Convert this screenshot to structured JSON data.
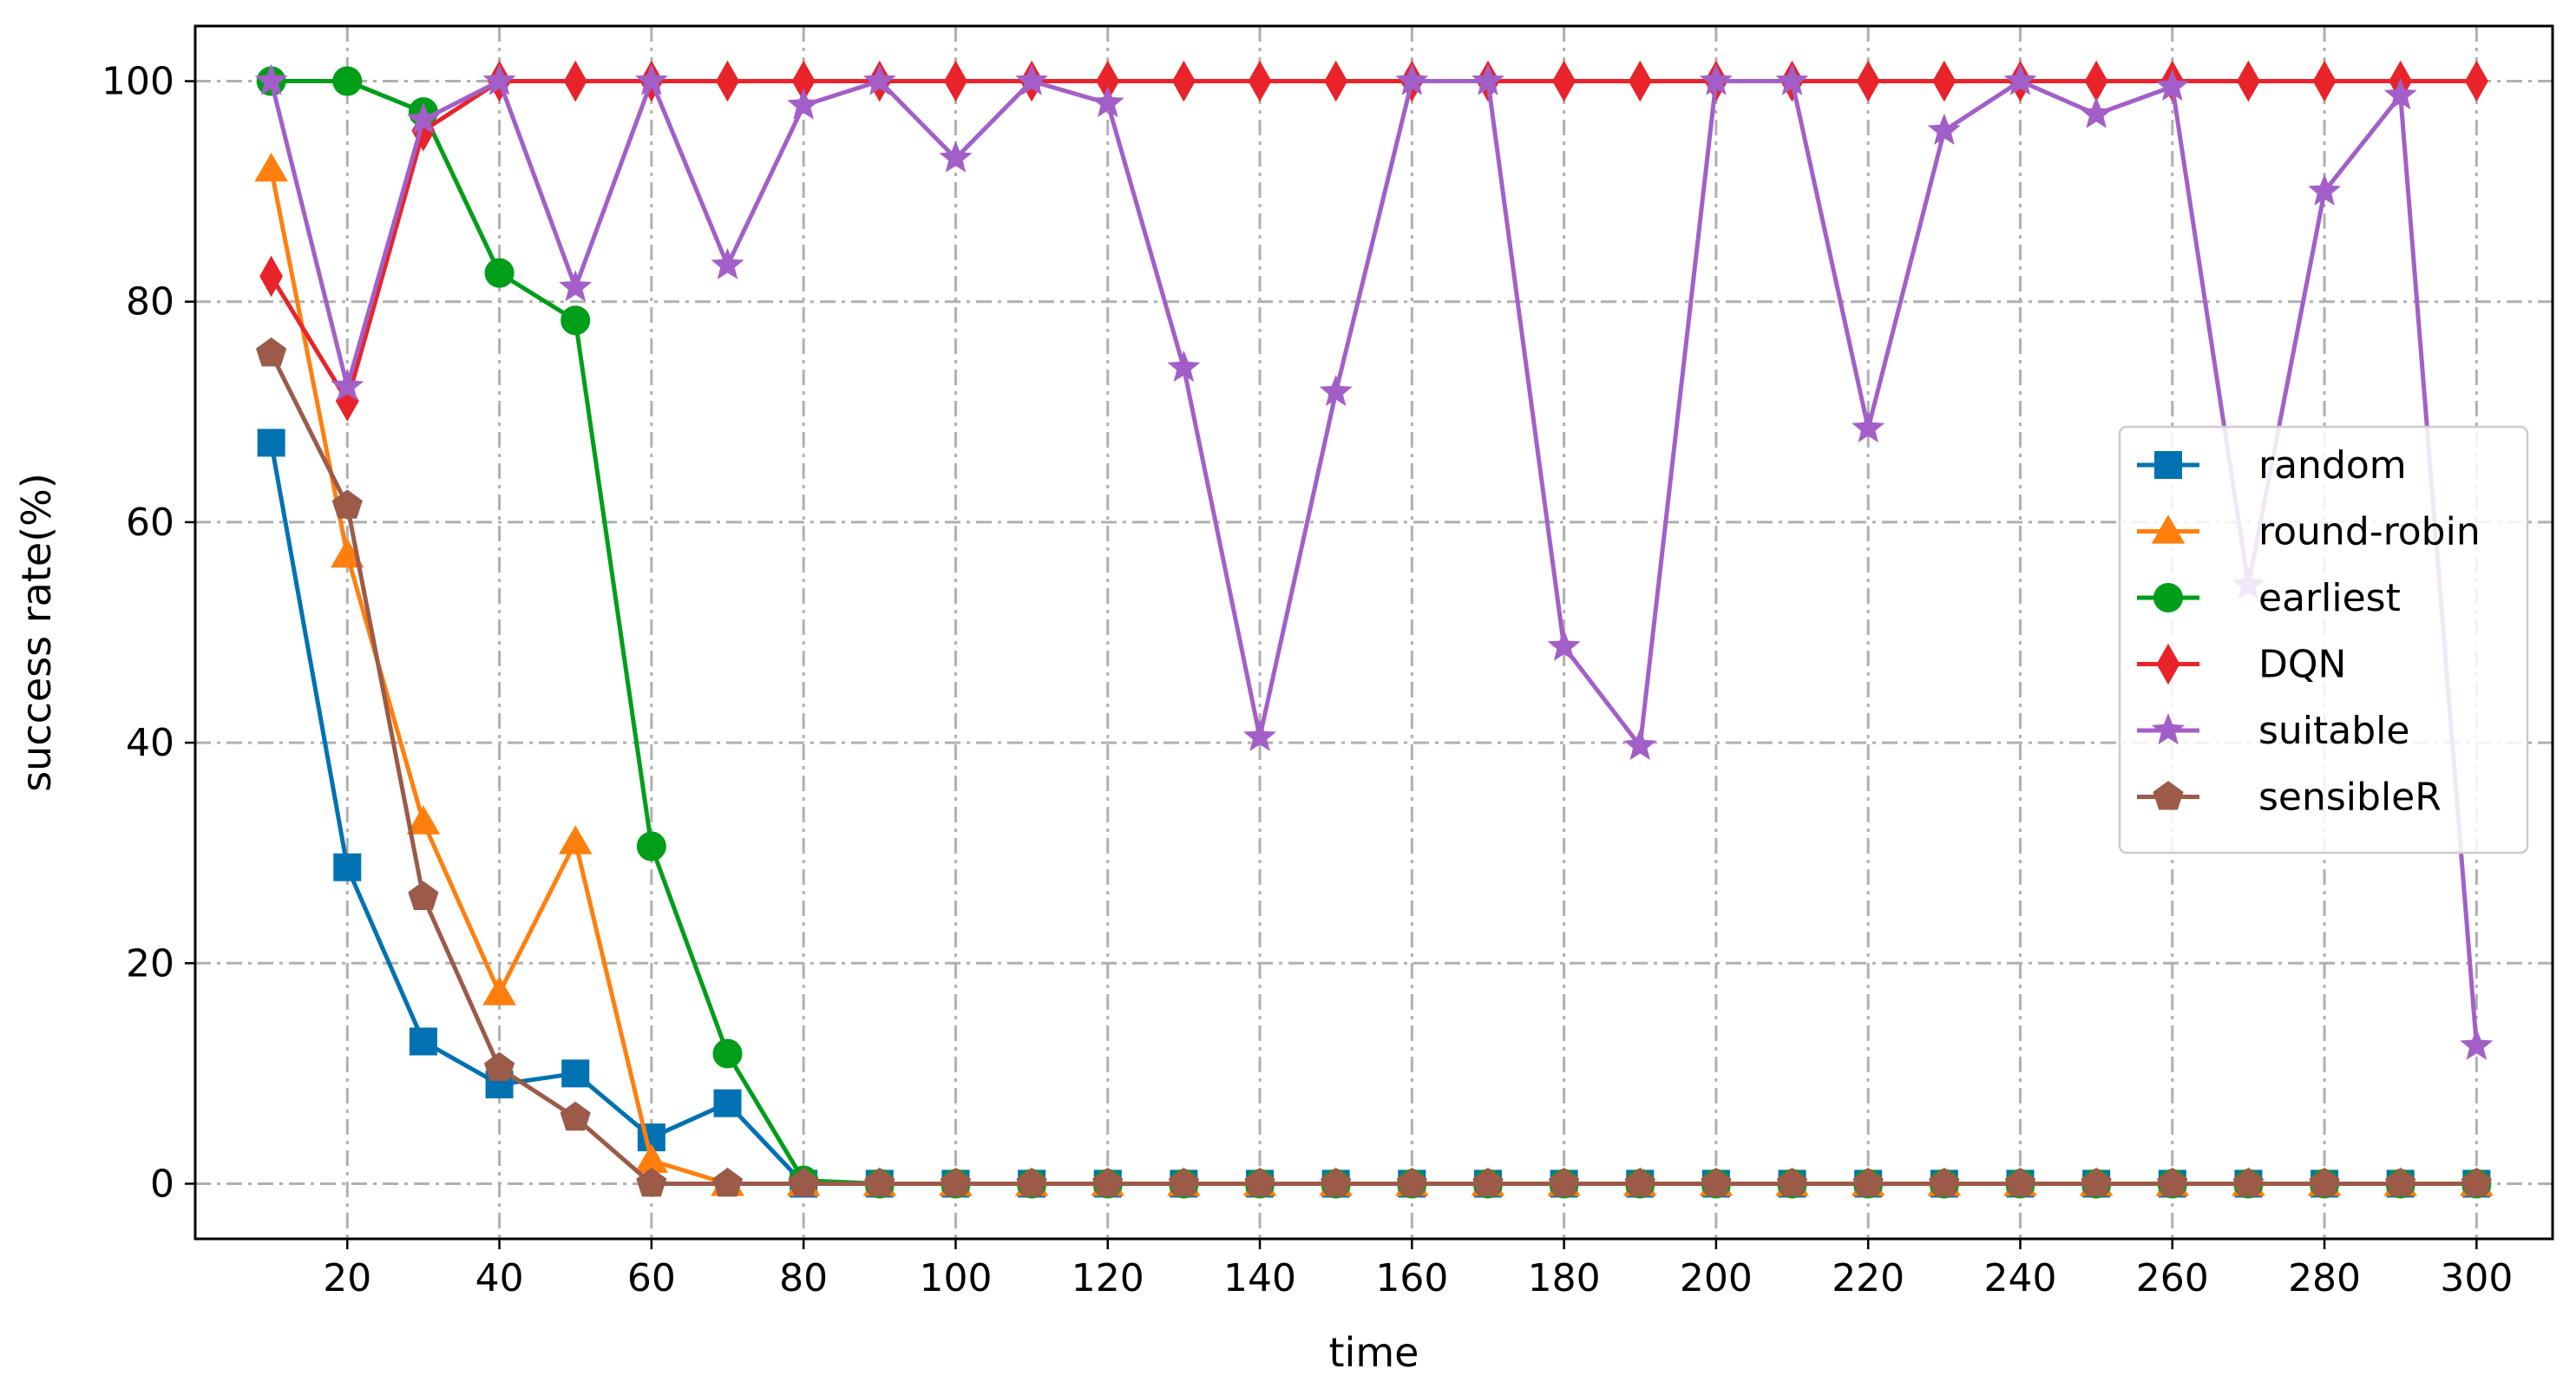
{
  "chart_data": {
    "type": "line",
    "xlabel": "time",
    "ylabel": "success rate(%)",
    "xlim": [
      0,
      310
    ],
    "ylim": [
      -5,
      105
    ],
    "xticks": [
      20,
      40,
      60,
      80,
      100,
      120,
      140,
      160,
      180,
      200,
      220,
      240,
      260,
      280,
      300
    ],
    "yticks": [
      0,
      20,
      40,
      60,
      80,
      100
    ],
    "grid": true,
    "legend_position": "center-right",
    "x": [
      10,
      20,
      30,
      40,
      50,
      60,
      70,
      80,
      90,
      100,
      110,
      120,
      130,
      140,
      150,
      160,
      170,
      180,
      190,
      200,
      210,
      220,
      230,
      240,
      250,
      260,
      270,
      280,
      290,
      300
    ],
    "series": [
      {
        "name": "random",
        "color": "#0072b2",
        "marker": "square",
        "values": [
          67.2,
          28.7,
          12.9,
          9.0,
          10.0,
          4.2,
          7.3,
          0,
          0,
          0,
          0,
          0,
          0,
          0,
          0,
          0,
          0,
          0,
          0,
          0,
          0,
          0,
          0,
          0,
          0,
          0,
          0,
          0,
          0,
          0
        ]
      },
      {
        "name": "round-robin",
        "color": "#ff7f0e",
        "marker": "triangle",
        "values": [
          92.0,
          57.0,
          32.8,
          17.3,
          31.0,
          2.1,
          0,
          0,
          0,
          0,
          0,
          0,
          0,
          0,
          0,
          0,
          0,
          0,
          0,
          0,
          0,
          0,
          0,
          0,
          0,
          0,
          0,
          0,
          0,
          0
        ]
      },
      {
        "name": "earliest",
        "color": "#009e19",
        "marker": "circle",
        "values": [
          100,
          100,
          97.2,
          82.6,
          78.3,
          30.6,
          11.8,
          0.3,
          0,
          0,
          0,
          0,
          0,
          0,
          0,
          0,
          0,
          0,
          0,
          0,
          0,
          0,
          0,
          0,
          0,
          0,
          0,
          0,
          0,
          0
        ]
      },
      {
        "name": "DQN",
        "color": "#e8232a",
        "marker": "diamond",
        "values": [
          82.3,
          71.0,
          95.5,
          100,
          100,
          100,
          100,
          100,
          100,
          100,
          100,
          100,
          100,
          100,
          100,
          100,
          100,
          100,
          100,
          100,
          100,
          100,
          100,
          100,
          100,
          100,
          100,
          100,
          100,
          100
        ]
      },
      {
        "name": "suitable",
        "color": "#a35fc8",
        "marker": "star",
        "values": [
          100,
          72.3,
          96.5,
          100,
          81.3,
          100,
          83.3,
          97.8,
          100,
          93.0,
          100,
          98.0,
          74.0,
          40.5,
          71.8,
          100,
          100,
          48.7,
          39.7,
          100,
          100,
          68.5,
          95.5,
          100,
          97.0,
          99.5,
          54.3,
          90.0,
          98.7,
          12.5
        ]
      },
      {
        "name": "sensibleR",
        "color": "#9c5a48",
        "marker": "pentagon",
        "values": [
          75.3,
          61.5,
          26.0,
          10.5,
          6.0,
          0,
          0,
          0,
          0,
          0,
          0,
          0,
          0,
          0,
          0,
          0,
          0,
          0,
          0,
          0,
          0,
          0,
          0,
          0,
          0,
          0,
          0,
          0,
          0,
          0
        ]
      }
    ]
  }
}
